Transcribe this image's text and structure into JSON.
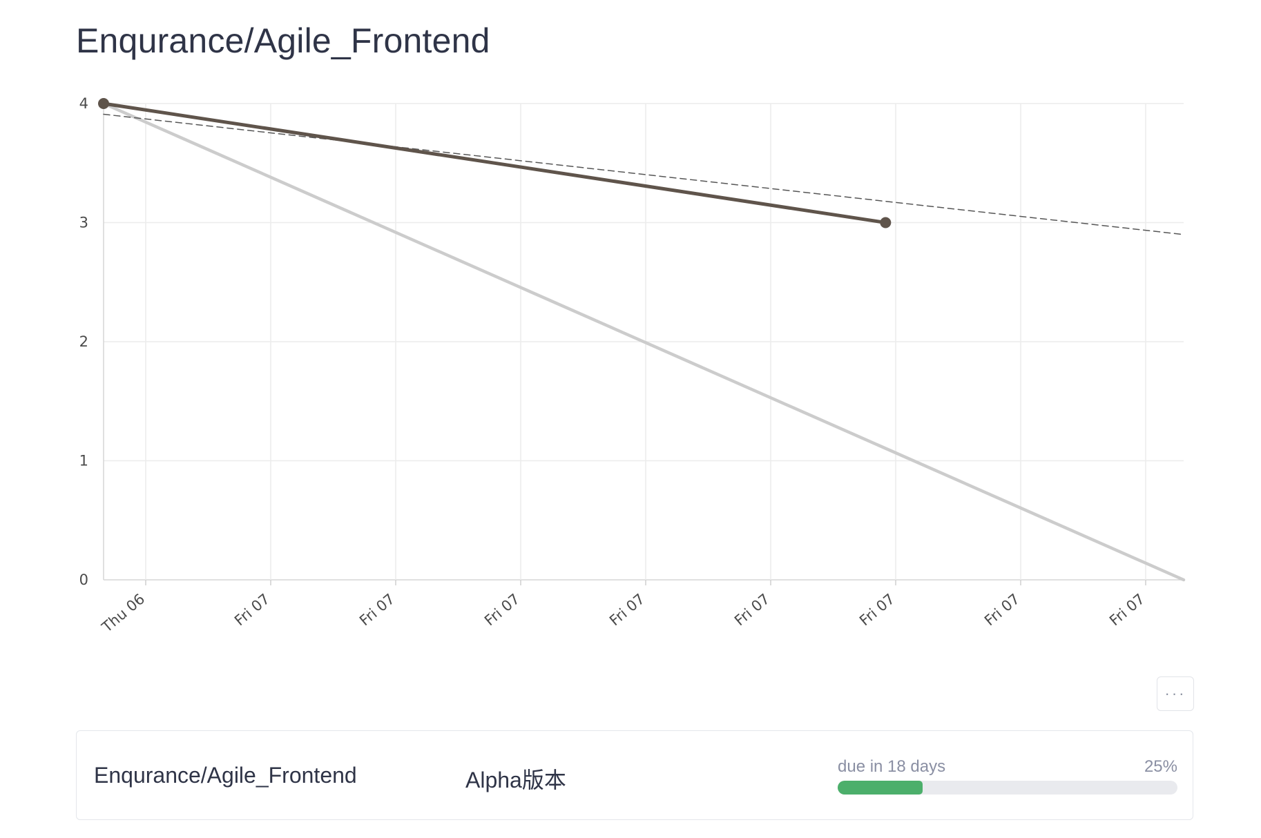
{
  "page": {
    "title": "Enqurance/Agile_Frontend"
  },
  "chart_data": {
    "type": "line",
    "title": "",
    "xlabel": "",
    "ylabel": "",
    "ylim": [
      0,
      4
    ],
    "yticks": [
      0,
      1,
      2,
      3,
      4
    ],
    "x_tick_labels": [
      "Thu 06",
      "Fri 07",
      "Fri 07",
      "Fri 07",
      "Fri 07",
      "Fri 07",
      "Fri 07",
      "Fri 07",
      "Fri 07"
    ],
    "grid": true,
    "series": [
      {
        "style": "actual",
        "color": "#5f544b",
        "x": [
          0,
          0.724
        ],
        "y": [
          4,
          3
        ],
        "markers": true
      },
      {
        "style": "ideal",
        "color": "#cccccc",
        "x": [
          0,
          1
        ],
        "y": [
          4,
          0
        ],
        "markers": false
      },
      {
        "style": "projected",
        "color": "#555555",
        "dashed": true,
        "x": [
          0,
          1
        ],
        "y": [
          3.91,
          2.9
        ],
        "markers": false
      }
    ]
  },
  "more_button": {
    "icon": "ellipsis-icon",
    "glyph": "···"
  },
  "milestone": {
    "project": "Enqurance/Agile_Frontend",
    "name": "Alpha版本",
    "due_text": "due in 18 days",
    "percent_text": "25%",
    "progress": 0.25,
    "progress_color": "#4caf6b"
  }
}
